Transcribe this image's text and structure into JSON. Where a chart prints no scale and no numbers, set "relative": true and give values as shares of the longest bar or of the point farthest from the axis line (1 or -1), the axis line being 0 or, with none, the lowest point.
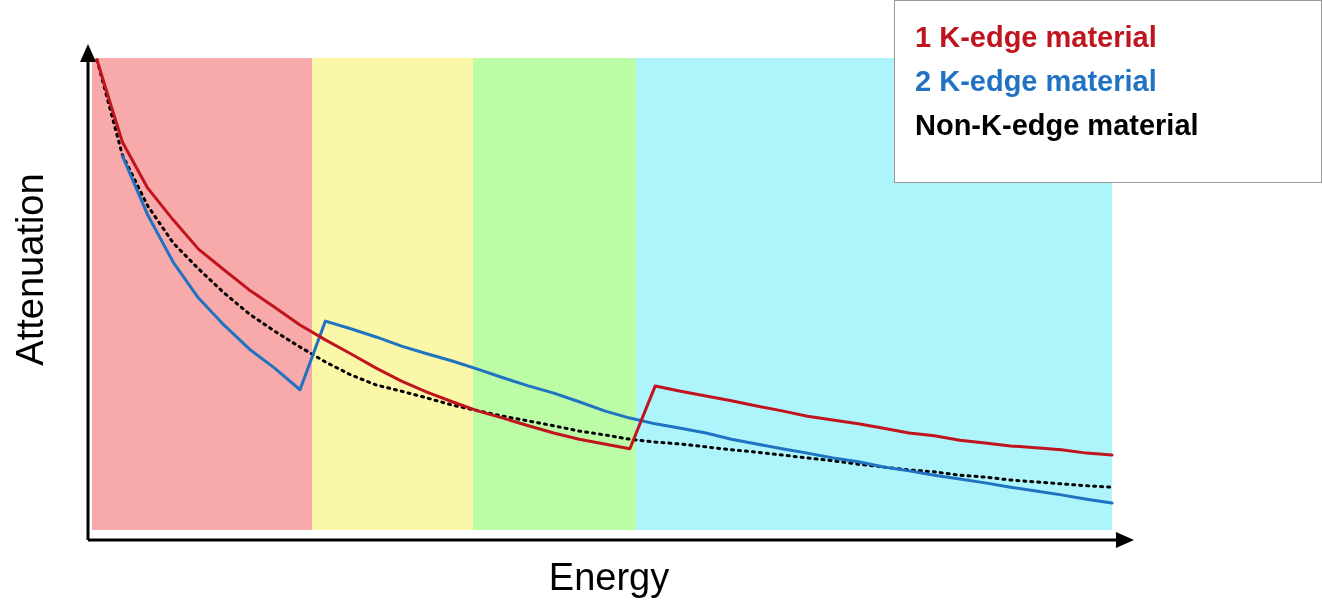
{
  "chart_data": {
    "type": "line",
    "relative": true,
    "xlabel": "Energy",
    "ylabel": "Attenuation",
    "tick_labels": false,
    "marker": "none",
    "line_style": "solid",
    "categories": [
      null,
      null,
      null,
      null,
      null,
      null,
      null,
      null,
      null,
      null,
      null,
      null,
      null,
      null,
      null,
      null,
      null,
      null,
      null,
      null,
      null,
      null,
      null,
      null,
      null,
      null,
      null,
      null,
      null,
      null,
      null,
      null,
      null,
      null,
      null,
      null,
      null,
      null,
      null,
      null,
      null
    ],
    "series": [
      {
        "name": "1 K-edge material",
        "color": "#c0141e",
        "values": [
          1.0,
          0.829,
          0.733,
          0.667,
          0.606,
          0.563,
          0.521,
          0.485,
          0.448,
          0.417,
          0.388,
          0.358,
          0.331,
          0.308,
          0.288,
          0.269,
          0.254,
          0.238,
          0.223,
          0.21,
          0.2,
          0.19,
          0.321,
          0.31,
          0.3,
          0.29,
          0.279,
          0.269,
          0.258,
          0.25,
          0.242,
          0.233,
          0.223,
          0.217,
          0.208,
          0.202,
          0.196,
          0.192,
          0.188,
          0.181,
          0.177
        ]
      },
      {
        "name": "2 K-edge material",
        "color": "#1f73c2",
        "values": [
          null,
          0.8,
          0.677,
          0.579,
          0.504,
          0.448,
          0.398,
          0.358,
          0.313,
          0.456,
          0.44,
          0.423,
          0.404,
          0.388,
          0.373,
          0.356,
          0.338,
          0.321,
          0.306,
          0.288,
          0.269,
          0.254,
          0.242,
          0.233,
          0.223,
          0.21,
          0.2,
          0.19,
          0.181,
          0.171,
          0.163,
          0.152,
          0.144,
          0.135,
          0.127,
          0.119,
          0.11,
          0.102,
          0.094,
          0.085,
          0.077
        ]
      },
      {
        "name": "Non-K-edge material",
        "color": "#000000",
        "line_style": "dotted",
        "values": [
          1.0,
          0.802,
          0.696,
          0.619,
          0.565,
          0.515,
          0.471,
          0.435,
          0.402,
          0.371,
          0.344,
          0.323,
          0.31,
          0.296,
          0.281,
          null,
          0.258,
          0.248,
          0.238,
          0.227,
          0.219,
          0.21,
          0.204,
          0.2,
          0.194,
          0.188,
          0.183,
          0.177,
          0.171,
          0.165,
          0.158,
          null,
          0.146,
          0.142,
          0.135,
          0.131,
          0.125,
          0.121,
          0.117,
          0.113,
          0.11
        ]
      }
    ]
  }
}
